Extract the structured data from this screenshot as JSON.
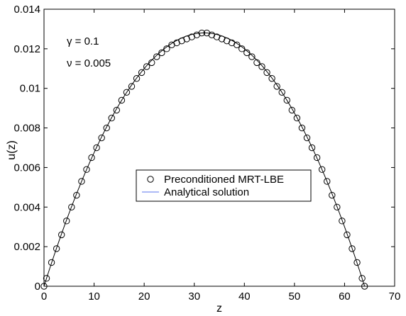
{
  "chart_data": {
    "type": "scatter",
    "xlabel": "z",
    "ylabel": "u(z)",
    "xlim": [
      0,
      70
    ],
    "ylim": [
      0,
      0.014
    ],
    "x_ticks": [
      0,
      10,
      20,
      30,
      40,
      50,
      60,
      70
    ],
    "y_ticks": [
      0,
      0.002,
      0.004,
      0.006,
      0.008,
      0.01,
      0.012,
      0.014
    ],
    "x_tick_labels": [
      "0",
      "10",
      "20",
      "30",
      "40",
      "50",
      "60",
      "70"
    ],
    "y_tick_labels": [
      "0",
      "0.002",
      "0.004",
      "0.006",
      "0.008",
      "0.01",
      "0.012",
      "0.014"
    ],
    "grid": false,
    "legend_position": "center",
    "annotations": [
      "γ = 0.1",
      "ν = 0.005"
    ],
    "curve": {
      "description": "parabolic profile u(z) = umax * 4 * z * (L - z) / L^2",
      "z_start": 0,
      "z_end": 64,
      "u_max": 0.0128
    },
    "series": [
      {
        "name": "Preconditioned MRT-LBE",
        "marker": "circle",
        "color": "#000000",
        "x": [
          0.5,
          1.5,
          2.5,
          3.5,
          4.5,
          5.5,
          6.5,
          7.5,
          8.5,
          9.5,
          10.5,
          11.5,
          12.5,
          13.5,
          14.5,
          15.5,
          16.5,
          17.5,
          18.5,
          19.5,
          20.5,
          21.5,
          22.5,
          23.5,
          24.5,
          25.5,
          26.5,
          27.5,
          28.5,
          29.5,
          30.5,
          31.5,
          32.5,
          33.5,
          34.5,
          35.5,
          36.5,
          37.5,
          38.5,
          39.5,
          40.5,
          41.5,
          42.5,
          43.5,
          44.5,
          45.5,
          46.5,
          47.5,
          48.5,
          49.5,
          50.5,
          51.5,
          52.5,
          53.5,
          54.5,
          55.5,
          56.5,
          57.5,
          58.5,
          59.5,
          60.5,
          61.5,
          62.5,
          63.5
        ],
        "y": [
          0.0004,
          0.0012,
          0.0019,
          0.0026,
          0.0033,
          0.004,
          0.0046,
          0.0053,
          0.0059,
          0.0065,
          0.007,
          0.0075,
          0.008,
          0.0085,
          0.0089,
          0.0094,
          0.0098,
          0.0101,
          0.0105,
          0.0108,
          0.0111,
          0.0113,
          0.0116,
          0.0118,
          0.012,
          0.0122,
          0.0123,
          0.0124,
          0.0125,
          0.0126,
          0.0127,
          0.0128,
          0.0128,
          0.0127,
          0.0126,
          0.0125,
          0.0124,
          0.0123,
          0.0122,
          0.012,
          0.0118,
          0.0116,
          0.0113,
          0.0111,
          0.0108,
          0.0105,
          0.0101,
          0.0098,
          0.0094,
          0.0089,
          0.0085,
          0.008,
          0.0075,
          0.007,
          0.0065,
          0.0059,
          0.0053,
          0.0046,
          0.004,
          0.0033,
          0.0026,
          0.0019,
          0.0012,
          0.0004
        ]
      },
      {
        "name": "Analytical solution",
        "marker": "line",
        "color": "#000000",
        "legend_color": "#7b8ff0"
      }
    ],
    "extra_markers": [
      {
        "x": 0,
        "y": 0
      },
      {
        "x": 64,
        "y": 0
      }
    ]
  }
}
